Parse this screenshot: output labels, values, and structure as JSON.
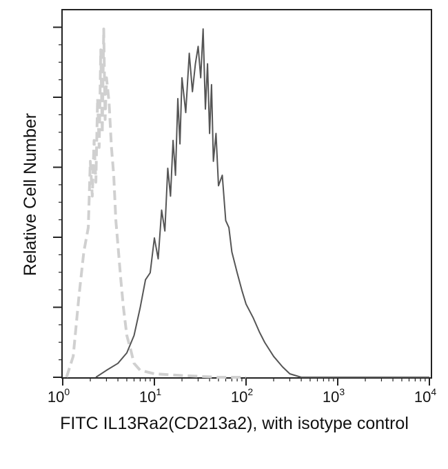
{
  "chart_data": {
    "type": "line",
    "title": "",
    "xlabel": "FITC IL13Ra2(CD213a2), with isotype control",
    "ylabel": "Relative Cell Number",
    "x_scale": "log",
    "xlim": [
      1,
      10000
    ],
    "ylim": [
      0,
      1
    ],
    "grid": false,
    "x_ticks": [
      {
        "base": "10",
        "exp": "0"
      },
      {
        "base": "10",
        "exp": "1"
      },
      {
        "base": "10",
        "exp": "2"
      },
      {
        "base": "10",
        "exp": "3"
      },
      {
        "base": "10",
        "exp": "4"
      }
    ],
    "series": [
      {
        "style": "dashed",
        "color": "#d0d0d0",
        "x": [
          1.1,
          1.3,
          1.5,
          1.7,
          1.9,
          2.0,
          2.1,
          2.2,
          2.3,
          2.4,
          2.5,
          2.6,
          2.7,
          2.8,
          2.9,
          3.0,
          3.2,
          3.4,
          3.6,
          3.8,
          4.0,
          4.3,
          4.6,
          5.0,
          5.5,
          6.0,
          7.0,
          10,
          20,
          50,
          100
        ],
        "y": [
          0.0,
          0.06,
          0.23,
          0.36,
          0.43,
          0.62,
          0.52,
          0.68,
          0.56,
          0.8,
          0.66,
          0.94,
          0.7,
          1.0,
          0.74,
          0.86,
          0.79,
          0.66,
          0.58,
          0.45,
          0.38,
          0.28,
          0.2,
          0.12,
          0.08,
          0.04,
          0.02,
          0.01,
          0.005,
          0.0,
          0.0
        ]
      },
      {
        "style": "solid",
        "color": "#555555",
        "x": [
          2.3,
          3.0,
          4.0,
          5.0,
          6.0,
          7.0,
          8.0,
          9.0,
          10,
          11,
          12,
          13,
          14,
          15,
          16,
          17,
          18,
          19,
          20,
          22,
          24,
          26,
          28,
          30,
          32,
          34,
          36,
          38,
          40,
          42,
          44,
          47,
          50,
          55,
          60,
          65,
          70,
          80,
          90,
          100,
          120,
          140,
          160,
          200,
          250,
          300,
          400,
          1000,
          10000
        ],
        "y": [
          0.0,
          0.02,
          0.04,
          0.07,
          0.12,
          0.2,
          0.28,
          0.3,
          0.4,
          0.34,
          0.48,
          0.42,
          0.6,
          0.52,
          0.68,
          0.58,
          0.8,
          0.67,
          0.86,
          0.76,
          0.93,
          0.82,
          0.9,
          0.95,
          0.86,
          1.0,
          0.77,
          0.9,
          0.7,
          0.84,
          0.62,
          0.7,
          0.55,
          0.58,
          0.45,
          0.43,
          0.36,
          0.3,
          0.25,
          0.21,
          0.17,
          0.13,
          0.1,
          0.06,
          0.03,
          0.01,
          0.0,
          0.0,
          0.0
        ]
      }
    ]
  }
}
